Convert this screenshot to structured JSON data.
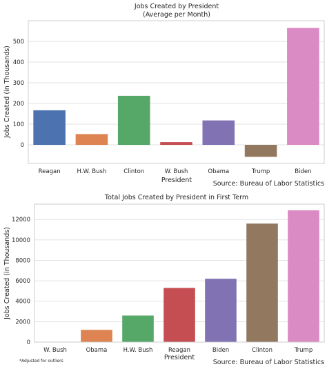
{
  "chart_data": [
    {
      "type": "bar",
      "title": "Jobs Created by President",
      "subtitle": "(Average per Month)",
      "xlabel": "President",
      "ylabel": "Jobs Created (in Thousands)",
      "source": "Source: Bureau of Labor Statistics",
      "categories": [
        "Reagan",
        "H.W. Bush",
        "Clinton",
        "W. Bush",
        "Obama",
        "Trump",
        "Biden"
      ],
      "values": [
        167,
        52,
        237,
        13,
        118,
        -58,
        565
      ],
      "colors": [
        "#4c72b0",
        "#dd8452",
        "#55a868",
        "#c44e52",
        "#8172b3",
        "#937860",
        "#da8bc3"
      ],
      "yticks": [
        0,
        100,
        200,
        300,
        400,
        500
      ],
      "ylim": [
        -90,
        600
      ],
      "grid": true,
      "legend": "none"
    },
    {
      "type": "bar",
      "title": "Total Jobs Created by President in First Term",
      "xlabel": "President",
      "ylabel": "Jobs Created (in Thousands)",
      "source": "Source: Bureau of Labor Statistics",
      "note": "*Adjusted for outliers",
      "categories": [
        "W. Bush",
        "Obama",
        "H.W. Bush",
        "Reagan",
        "Biden",
        "Clinton",
        "Trump"
      ],
      "values": [
        0,
        1200,
        2600,
        5300,
        6200,
        11600,
        12900
      ],
      "colors": [
        "#4c72b0",
        "#dd8452",
        "#55a868",
        "#c44e52",
        "#8172b3",
        "#937860",
        "#da8bc3"
      ],
      "yticks": [
        0,
        2000,
        4000,
        6000,
        8000,
        10000,
        12000
      ],
      "ylim": [
        0,
        13500
      ],
      "grid": true,
      "legend": "none"
    }
  ]
}
